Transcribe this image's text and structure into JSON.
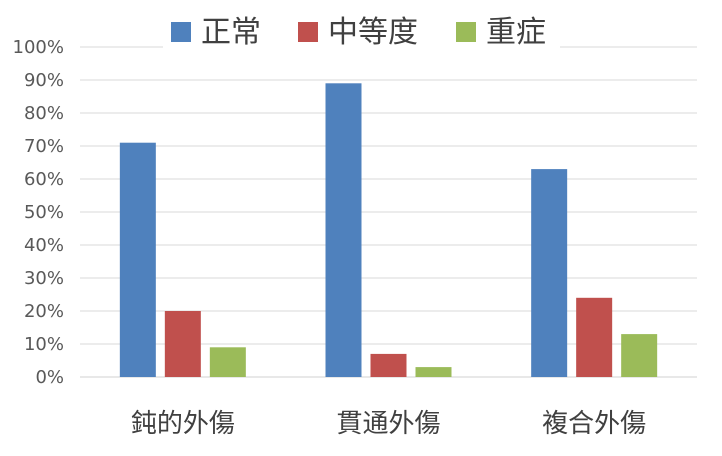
{
  "chart_data": {
    "type": "bar",
    "categories": [
      "鈍的外傷",
      "貫通外傷",
      "複合外傷"
    ],
    "series": [
      {
        "name": "正常",
        "color": "#4f81bd",
        "values": [
          71,
          89,
          63
        ]
      },
      {
        "name": "中等度",
        "color": "#c0504d",
        "values": [
          20,
          7,
          24
        ]
      },
      {
        "name": "重症",
        "color": "#9bbb59",
        "values": [
          9,
          3,
          13
        ]
      }
    ],
    "ylim": [
      0,
      100
    ],
    "y_ticks": [
      "0%",
      "10%",
      "20%",
      "30%",
      "40%",
      "50%",
      "60%",
      "70%",
      "80%",
      "90%",
      "100%"
    ],
    "grid": true,
    "legend_position": "top"
  }
}
